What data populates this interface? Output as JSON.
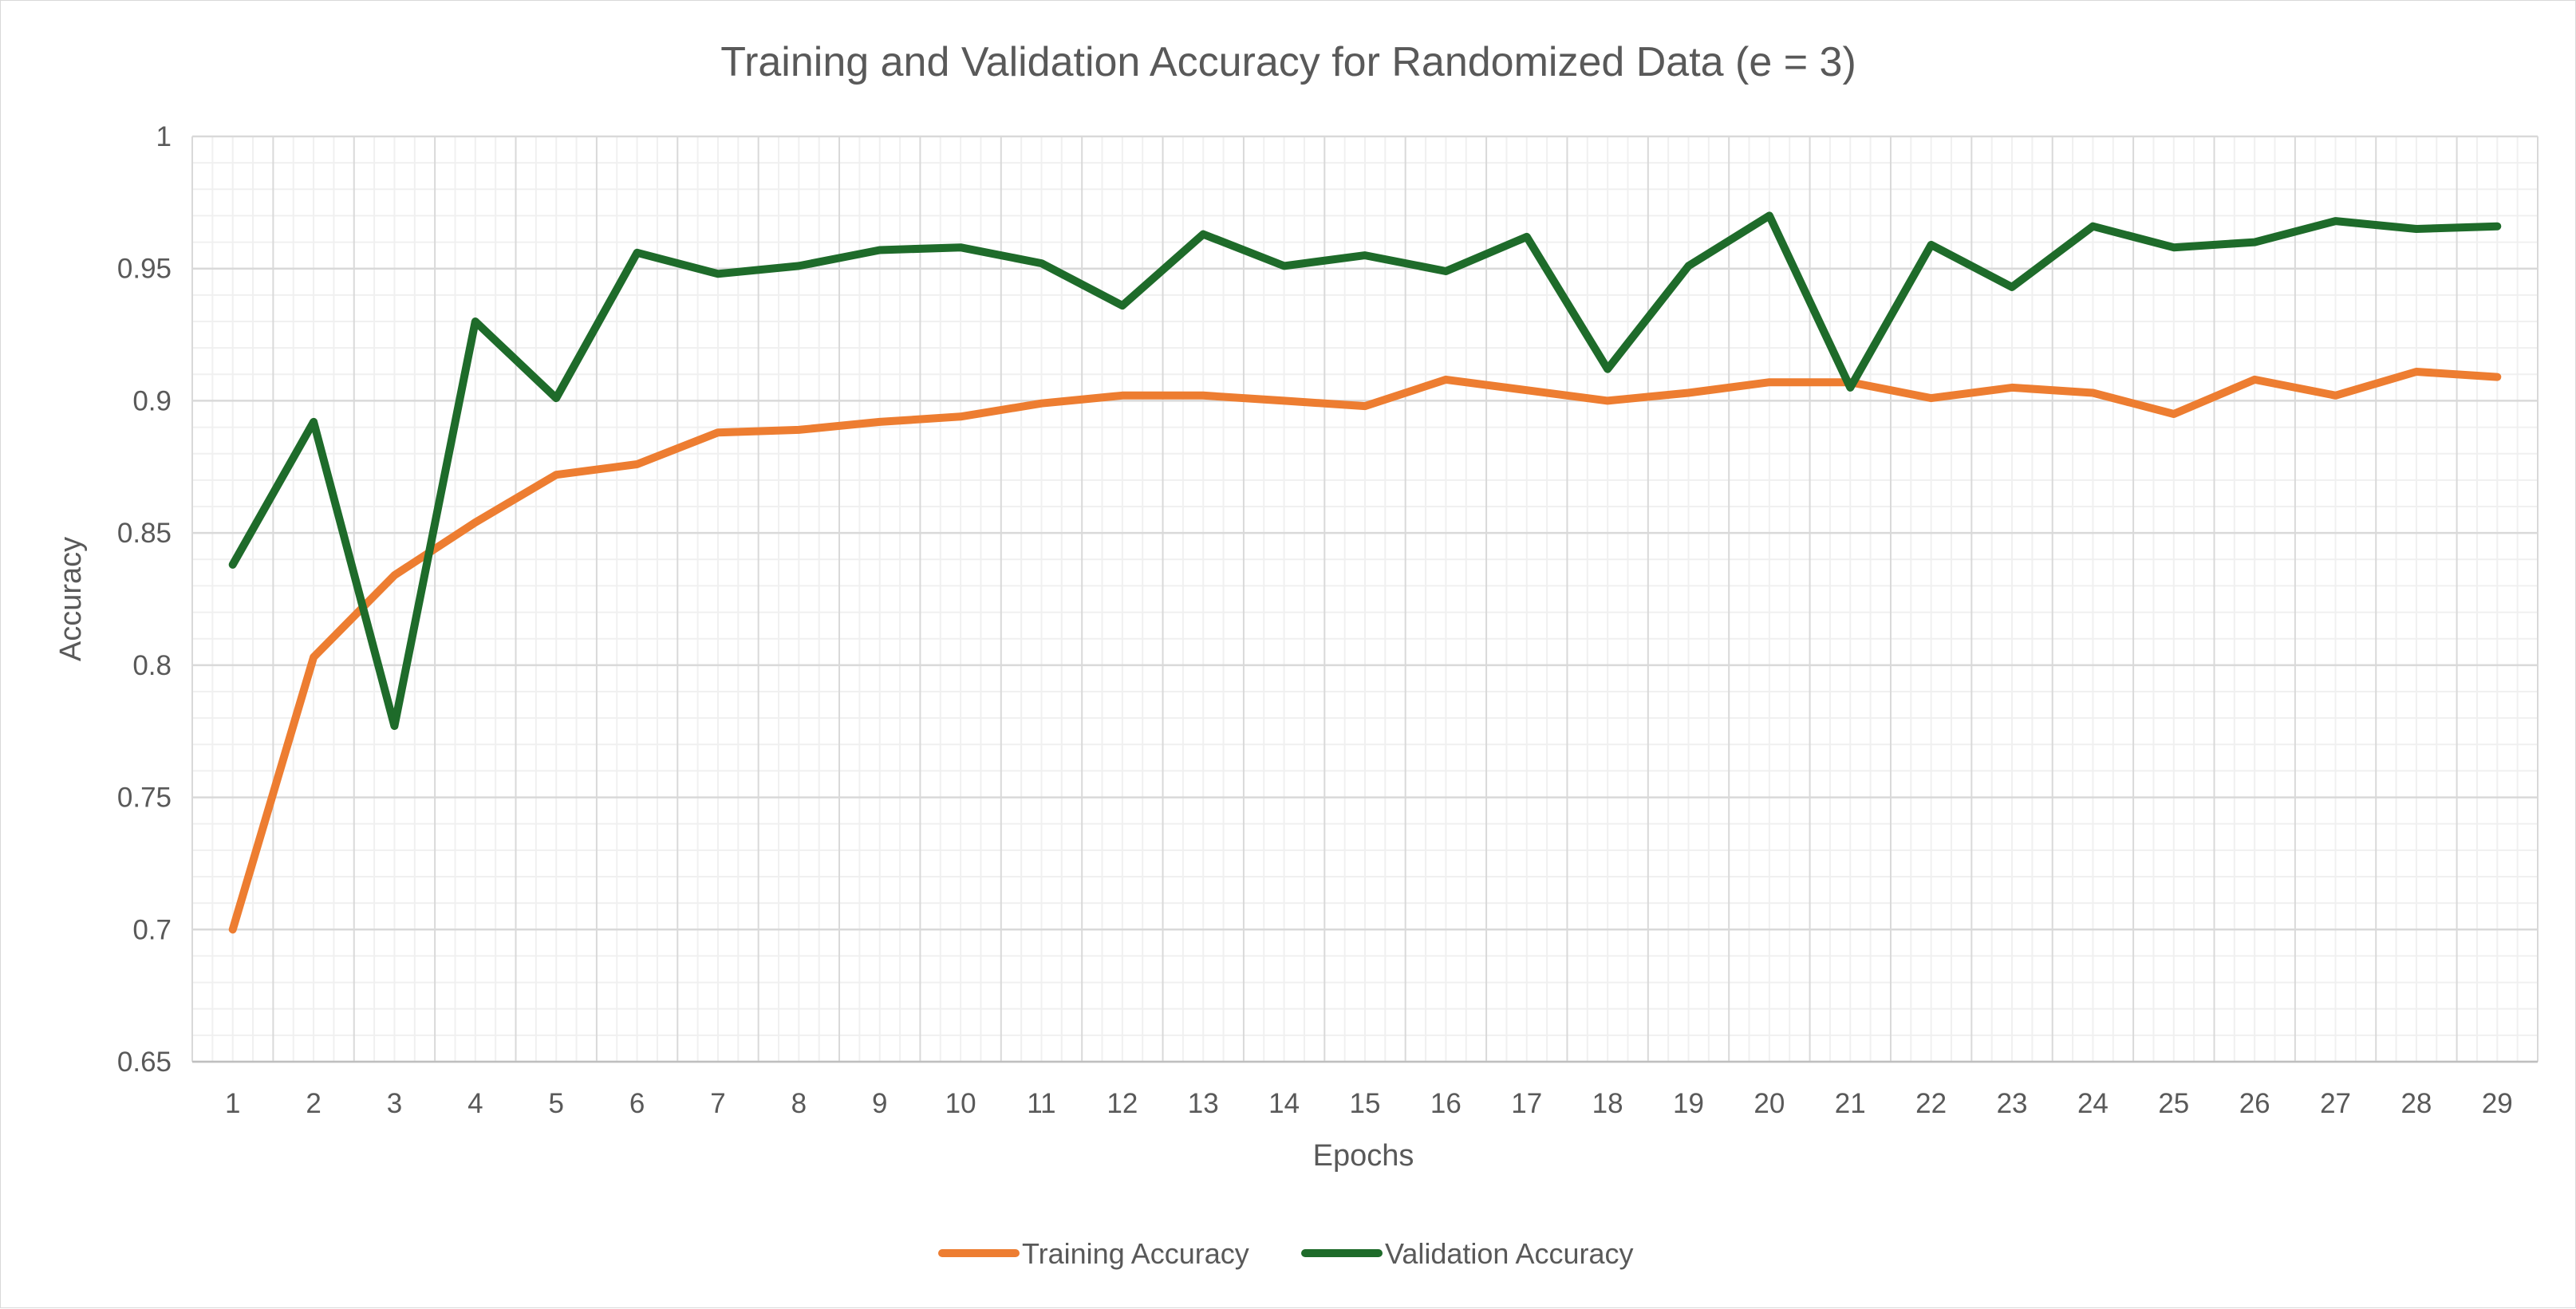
{
  "chart_data": {
    "type": "line",
    "title": "Training and Validation Accuracy for Randomized Data (e = 3)",
    "xlabel": "Epochs",
    "ylabel": "Accuracy",
    "ylim": [
      0.65,
      1
    ],
    "y_ticks": [
      "0.65",
      "0.7",
      "0.75",
      "0.8",
      "0.85",
      "0.9",
      "0.95",
      "1"
    ],
    "y_tick_values": [
      0.65,
      0.7,
      0.75,
      0.8,
      0.85,
      0.9,
      0.95,
      1
    ],
    "categories": [
      "1",
      "2",
      "3",
      "4",
      "5",
      "6",
      "7",
      "8",
      "9",
      "10",
      "11",
      "12",
      "13",
      "14",
      "15",
      "16",
      "17",
      "18",
      "19",
      "20",
      "21",
      "22",
      "23",
      "24",
      "25",
      "26",
      "27",
      "28",
      "29"
    ],
    "grid": "major and minor",
    "legend_position": "bottom",
    "series": [
      {
        "name": "Training Accuracy",
        "color": "#ED7D31",
        "values": [
          0.7,
          0.803,
          0.834,
          0.854,
          0.872,
          0.876,
          0.888,
          0.889,
          0.892,
          0.894,
          0.899,
          0.902,
          0.902,
          0.9,
          0.898,
          0.908,
          0.904,
          0.9,
          0.903,
          0.907,
          0.907,
          0.901,
          0.905,
          0.903,
          0.895,
          0.908,
          0.902,
          0.911,
          0.909
        ]
      },
      {
        "name": "Validation Accuracy",
        "color": "#1E6B2A",
        "values": [
          0.838,
          0.892,
          0.777,
          0.93,
          0.901,
          0.956,
          0.948,
          0.951,
          0.957,
          0.958,
          0.952,
          0.936,
          0.963,
          0.951,
          0.955,
          0.949,
          0.962,
          0.912,
          0.951,
          0.97,
          0.905,
          0.959,
          0.943,
          0.966,
          0.958,
          0.96,
          0.968,
          0.965,
          0.966
        ]
      }
    ]
  }
}
